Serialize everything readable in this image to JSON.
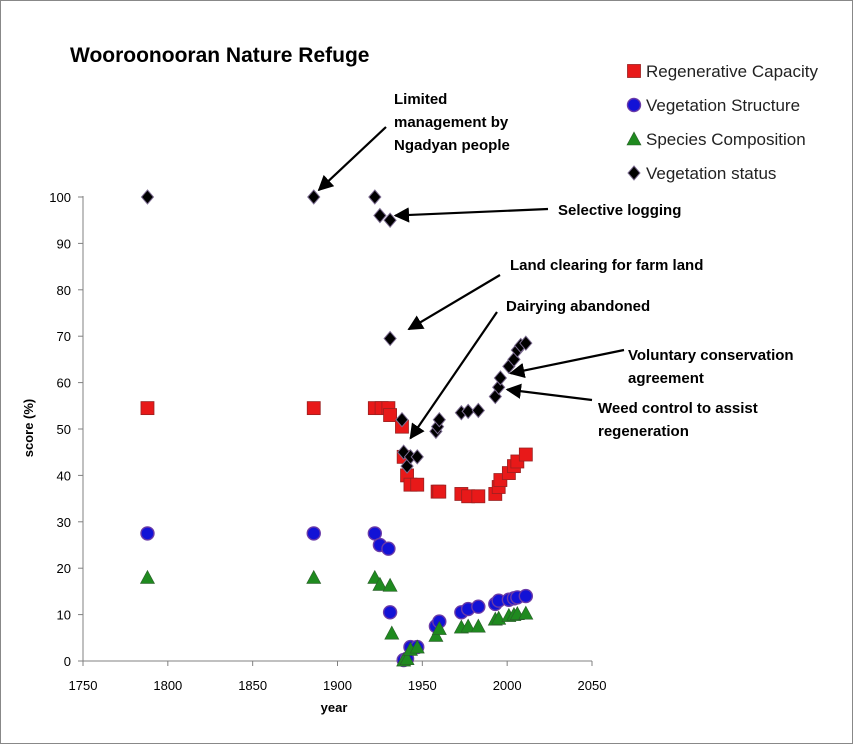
{
  "chart_data": {
    "type": "scatter",
    "title": "Wooroonooran Nature Refuge",
    "xlabel": "year",
    "ylabel": "score  (%)",
    "xlim": [
      1750,
      2050
    ],
    "ylim": [
      0,
      100
    ],
    "x_ticks": [
      1750,
      1800,
      1850,
      1900,
      1950,
      2000,
      2050
    ],
    "y_ticks": [
      0,
      10,
      20,
      30,
      40,
      50,
      60,
      70,
      80,
      90,
      100
    ],
    "grid": false,
    "legend_position": "top-right",
    "series": [
      {
        "name": "Regenerative Capacity",
        "marker": "square",
        "color": "#e81919",
        "points": [
          [
            1788,
            54.5
          ],
          [
            1886,
            54.5
          ],
          [
            1922,
            54.5
          ],
          [
            1926,
            54.5
          ],
          [
            1930,
            54.5
          ],
          [
            1931,
            53
          ],
          [
            1938,
            50.5
          ],
          [
            1939,
            44
          ],
          [
            1941,
            40
          ],
          [
            1943,
            38
          ],
          [
            1947,
            38
          ],
          [
            1959,
            36.5
          ],
          [
            1960,
            36.5
          ],
          [
            1973,
            36
          ],
          [
            1977,
            35.5
          ],
          [
            1983,
            35.5
          ],
          [
            1993,
            36
          ],
          [
            1995,
            37.5
          ],
          [
            1996,
            39
          ],
          [
            2001,
            40.5
          ],
          [
            2004,
            42
          ],
          [
            2006,
            43
          ],
          [
            2011,
            44.5
          ]
        ]
      },
      {
        "name": "Vegetation Structure",
        "marker": "circle",
        "color": "#1212d6",
        "points": [
          [
            1788,
            27.5
          ],
          [
            1886,
            27.5
          ],
          [
            1922,
            27.5
          ],
          [
            1925,
            25
          ],
          [
            1930,
            24.2
          ],
          [
            1931,
            10.5
          ],
          [
            1939,
            0.2
          ],
          [
            1941,
            0.5
          ],
          [
            1943,
            3
          ],
          [
            1947,
            3
          ],
          [
            1958,
            7.5
          ],
          [
            1960,
            8.5
          ],
          [
            1973,
            10.5
          ],
          [
            1977,
            11.2
          ],
          [
            1983,
            11.7
          ],
          [
            1993,
            12.3
          ],
          [
            1995,
            13
          ],
          [
            2001,
            13.2
          ],
          [
            2004,
            13.5
          ],
          [
            2006,
            13.7
          ],
          [
            2011,
            14
          ]
        ]
      },
      {
        "name": "Species Composition",
        "marker": "triangle",
        "color": "#1f8a1f",
        "points": [
          [
            1788,
            18
          ],
          [
            1886,
            18
          ],
          [
            1922,
            18
          ],
          [
            1925,
            16.5
          ],
          [
            1931,
            16.3
          ],
          [
            1932,
            6
          ],
          [
            1939,
            0.2
          ],
          [
            1941,
            0.5
          ],
          [
            1943,
            2.5
          ],
          [
            1947,
            3
          ],
          [
            1958,
            5.5
          ],
          [
            1960,
            7
          ],
          [
            1973,
            7.3
          ],
          [
            1977,
            7.5
          ],
          [
            1983,
            7.5
          ],
          [
            1993,
            9
          ],
          [
            1995,
            9.2
          ],
          [
            2001,
            9.8
          ],
          [
            2004,
            10
          ],
          [
            2006,
            10.2
          ],
          [
            2011,
            10.3
          ]
        ]
      },
      {
        "name": "Vegetation status",
        "marker": "diamond",
        "color": "#000000",
        "points": [
          [
            1788,
            100
          ],
          [
            1886,
            100
          ],
          [
            1922,
            100
          ],
          [
            1925,
            96
          ],
          [
            1931,
            95
          ],
          [
            1931,
            69.5
          ],
          [
            1938,
            52
          ],
          [
            1939,
            45
          ],
          [
            1941,
            42
          ],
          [
            1943,
            44
          ],
          [
            1947,
            44
          ],
          [
            1958,
            49.5
          ],
          [
            1959,
            50.5
          ],
          [
            1960,
            52
          ],
          [
            1973,
            53.5
          ],
          [
            1977,
            53.8
          ],
          [
            1983,
            54
          ],
          [
            1993,
            57
          ],
          [
            1995,
            59
          ],
          [
            1996,
            61
          ],
          [
            2001,
            63.5
          ],
          [
            2004,
            65
          ],
          [
            2006,
            67
          ],
          [
            2008,
            68
          ],
          [
            2011,
            68.5
          ]
        ]
      }
    ],
    "annotations": [
      {
        "lines": [
          "Limited",
          "management by",
          "Ngadyan people"
        ],
        "arrow_to": [
          1889,
          101.5
        ]
      },
      {
        "lines": [
          "Selective logging"
        ],
        "arrow_to": [
          1934,
          96
        ]
      },
      {
        "lines": [
          "Land clearing for farm land"
        ],
        "arrow_to": [
          1942,
          71.5
        ]
      },
      {
        "lines": [
          "Dairying abandoned"
        ],
        "arrow_to": [
          1943,
          48
        ]
      },
      {
        "lines": [
          "Voluntary conservation",
          "agreement"
        ],
        "arrow_to": [
          2002,
          62
        ]
      },
      {
        "lines": [
          "Weed control to assist",
          "regeneration"
        ],
        "arrow_to": [
          2000,
          58.5
        ]
      }
    ]
  }
}
